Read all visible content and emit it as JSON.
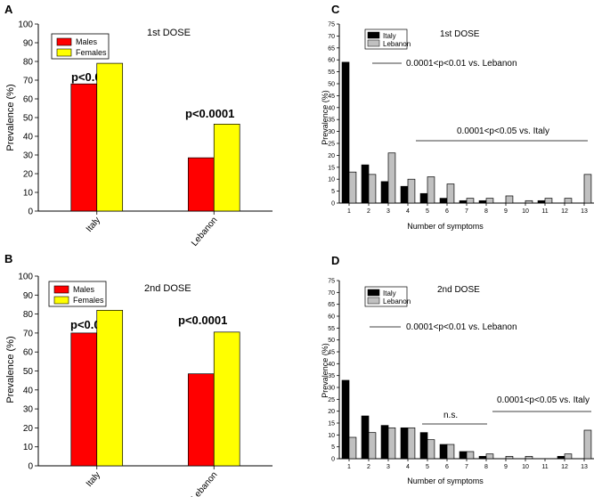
{
  "chart_data": [
    {
      "panel": "A",
      "type": "bar",
      "title": "1st DOSE",
      "ylabel": "Prevalence (%)",
      "xlabel": "",
      "ylim": [
        0,
        100
      ],
      "yticks": [
        0,
        10,
        20,
        30,
        40,
        50,
        60,
        70,
        80,
        90,
        100
      ],
      "categories": [
        "Italy",
        "Lebanon"
      ],
      "series": [
        {
          "name": "Males",
          "color": "#ff0000",
          "values": [
            68,
            28.5
          ]
        },
        {
          "name": "Females",
          "color": "#ffff00",
          "values": [
            79,
            46.5
          ]
        }
      ],
      "annotations": [
        "p<0.0001",
        "p<0.0001"
      ],
      "legend": "top-left"
    },
    {
      "panel": "B",
      "type": "bar",
      "title": "2nd DOSE",
      "ylabel": "Prevalence (%)",
      "xlabel": "",
      "ylim": [
        0,
        100
      ],
      "yticks": [
        0,
        10,
        20,
        30,
        40,
        50,
        60,
        70,
        80,
        90,
        100
      ],
      "categories": [
        "Italy",
        "Lebanon"
      ],
      "series": [
        {
          "name": "Males",
          "color": "#ff0000",
          "values": [
            70,
            48.5
          ]
        },
        {
          "name": "Females",
          "color": "#ffff00",
          "values": [
            82,
            70.5
          ]
        }
      ],
      "annotations": [
        "p<0.0001",
        "p<0.0001"
      ],
      "legend": "top-left"
    },
    {
      "panel": "C",
      "type": "bar",
      "title": "1st DOSE",
      "ylabel": "Prevalence (%)",
      "xlabel": "Number of symptoms",
      "ylim": [
        0,
        75
      ],
      "yticks": [
        0,
        5,
        10,
        15,
        20,
        25,
        30,
        35,
        40,
        45,
        50,
        55,
        60,
        65,
        70,
        75
      ],
      "categories": [
        "1",
        "2",
        "3",
        "4",
        "5",
        "6",
        "7",
        "8",
        "9",
        "10",
        "11",
        "12",
        "13"
      ],
      "series": [
        {
          "name": "Italy",
          "color": "#000000",
          "values": [
            59,
            16,
            9,
            7,
            4,
            2,
            1,
            1,
            0,
            0,
            1,
            0,
            0
          ]
        },
        {
          "name": "Lebanon",
          "color": "#c0c0c0",
          "values": [
            13,
            12,
            21,
            10,
            11,
            8,
            2,
            2,
            3,
            1,
            2,
            2,
            12
          ]
        }
      ],
      "annotations": [
        "0.0001<p<0.01 vs. Lebanon",
        "0.0001<p<0.05 vs. Italy"
      ],
      "legend": "top-left"
    },
    {
      "panel": "D",
      "type": "bar",
      "title": "2nd DOSE",
      "ylabel": "Prevalence (%)",
      "xlabel": "Number of symptoms",
      "ylim": [
        0,
        75
      ],
      "yticks": [
        0,
        5,
        10,
        15,
        20,
        25,
        30,
        35,
        40,
        45,
        50,
        55,
        60,
        65,
        70,
        75
      ],
      "categories": [
        "1",
        "2",
        "3",
        "4",
        "5",
        "6",
        "7",
        "8",
        "9",
        "10",
        "11",
        "12",
        "13"
      ],
      "series": [
        {
          "name": "Italy",
          "color": "#000000",
          "values": [
            33,
            18,
            14,
            13,
            11,
            6,
            3,
            1,
            0,
            0,
            0,
            1,
            0
          ]
        },
        {
          "name": "Lebanon",
          "color": "#c0c0c0",
          "values": [
            9,
            11,
            13,
            13,
            8,
            6,
            3,
            2,
            1,
            1,
            0,
            2,
            12
          ]
        }
      ],
      "annotations": [
        "0.0001<p<0.01 vs. Lebanon",
        "n.s.",
        "0.0001<p<0.05 vs. Italy"
      ],
      "legend": "top-left"
    }
  ]
}
